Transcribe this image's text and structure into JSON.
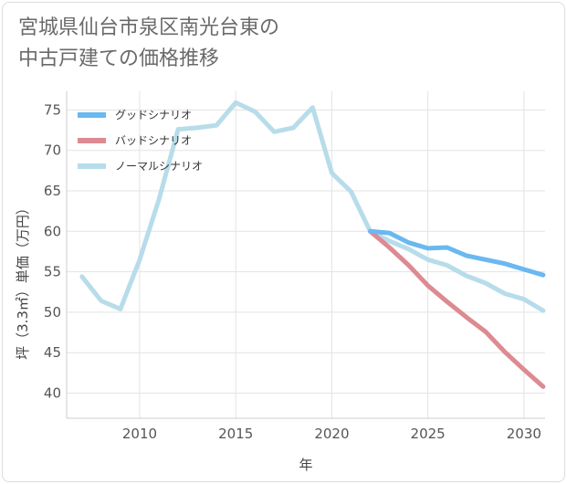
{
  "chart_data": {
    "type": "line",
    "title": "宮城県仙台市泉区南光台東の\n中古戸建ての価格推移",
    "xlabel": "年",
    "ylabel": "坪（3.3㎡）単価（万円）",
    "xlim": [
      2006.2,
      2031.1
    ],
    "ylim": [
      36.9,
      77.3
    ],
    "x_ticks": [
      2010,
      2015,
      2020,
      2025,
      2030
    ],
    "y_ticks": [
      40,
      45,
      50,
      55,
      60,
      65,
      70,
      75
    ],
    "grid": true,
    "legend_position": "top-left",
    "series": [
      {
        "name": "グッドシナリオ",
        "color": "#6ab8f0",
        "x": [
          2022,
          2023,
          2024,
          2025,
          2026,
          2027,
          2028,
          2029,
          2030,
          2031
        ],
        "y": [
          60.0,
          59.8,
          58.6,
          57.9,
          58.0,
          57.0,
          56.5,
          56.0,
          55.3,
          54.6
        ]
      },
      {
        "name": "バッドシナリオ",
        "color": "#dd8a92",
        "x": [
          2022,
          2023,
          2024,
          2025,
          2026,
          2027,
          2028,
          2029,
          2030,
          2031
        ],
        "y": [
          60.0,
          58.0,
          55.8,
          53.3,
          51.3,
          49.4,
          47.6,
          45.1,
          42.9,
          40.8
        ]
      },
      {
        "name": "ノーマルシナリオ",
        "color": "#b7dcea",
        "x": [
          2007,
          2008,
          2009,
          2010,
          2011,
          2012,
          2013,
          2014,
          2015,
          2016,
          2017,
          2018,
          2019,
          2020,
          2021,
          2022,
          2023,
          2024,
          2025,
          2026,
          2027,
          2028,
          2029,
          2030,
          2031
        ],
        "y": [
          54.4,
          51.4,
          50.4,
          56.5,
          63.9,
          72.6,
          72.8,
          73.1,
          75.9,
          74.8,
          72.3,
          72.8,
          75.3,
          67.2,
          64.9,
          60.0,
          58.8,
          57.8,
          56.5,
          55.8,
          54.5,
          53.6,
          52.3,
          51.6,
          50.2
        ]
      }
    ]
  }
}
